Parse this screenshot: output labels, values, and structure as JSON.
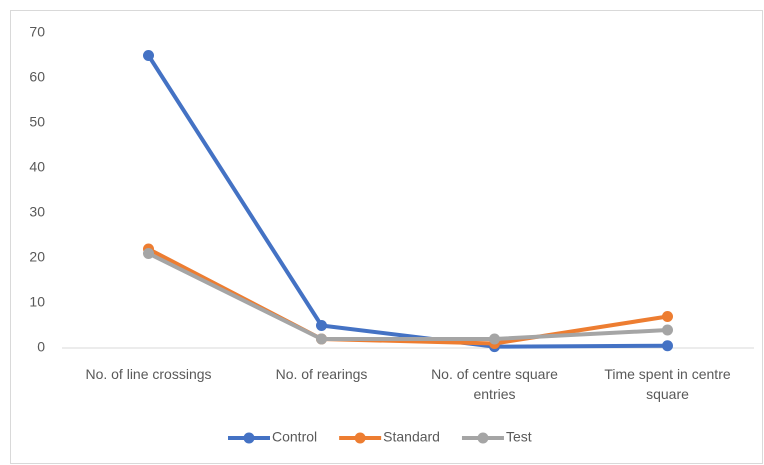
{
  "chart_data": {
    "type": "line",
    "categories": [
      "No. of line crossings",
      "No. of rearings",
      "No. of centre square entries",
      "Time spent in centre square"
    ],
    "series": [
      {
        "name": "Control",
        "color": "#4472c4",
        "values": [
          65,
          5,
          0.3,
          0.5
        ]
      },
      {
        "name": "Standard",
        "color": "#ed7d31",
        "values": [
          22,
          2,
          1,
          7
        ]
      },
      {
        "name": "Test",
        "color": "#a5a5a5",
        "values": [
          21,
          2,
          2,
          4
        ]
      }
    ],
    "ylim": [
      0,
      70
    ],
    "yticks": [
      0,
      10,
      20,
      30,
      40,
      50,
      60,
      70
    ],
    "grid": false,
    "legend": "bottom"
  }
}
